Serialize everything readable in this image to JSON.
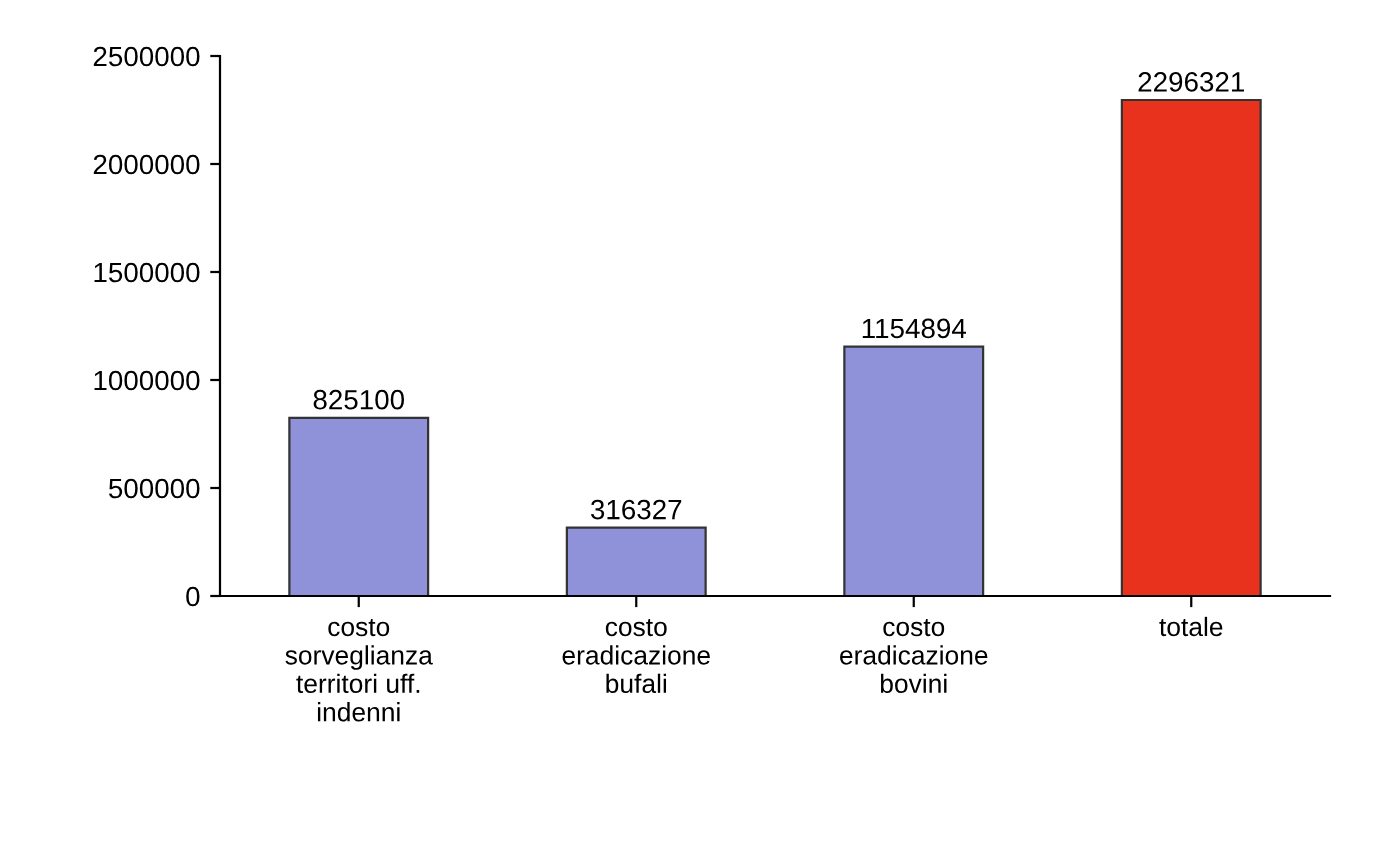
{
  "chart_data": {
    "type": "bar",
    "categories": [
      "costo\nsorveglianza\nterritori uff.\nindenni",
      "costo\neradicazione\nbufali",
      "costo\neradicazione\nbovini",
      "totale"
    ],
    "values": [
      825100,
      316327,
      1154894,
      2296321
    ],
    "colors": [
      "#8f92d8",
      "#8f92d8",
      "#8f92d8",
      "#e8321e"
    ],
    "ylim": [
      0,
      2500000
    ],
    "yticks": [
      0,
      500000,
      1000000,
      1500000,
      2000000,
      2500000
    ],
    "grid": false,
    "data_labels": true
  }
}
